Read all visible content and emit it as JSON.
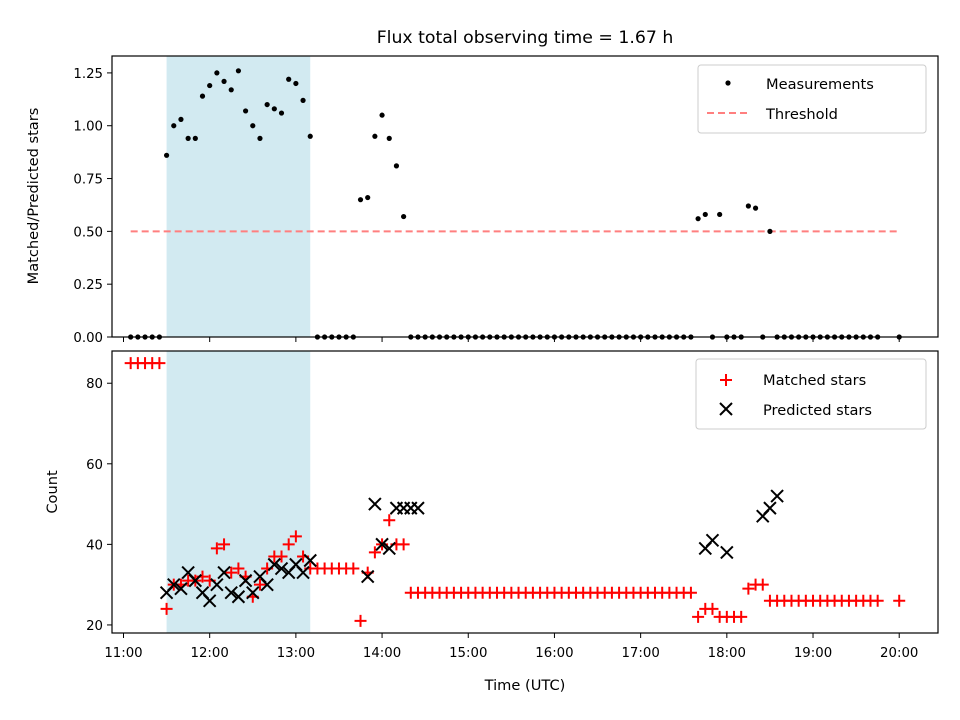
{
  "chart_data": [
    {
      "type": "scatter",
      "title": "Flux total observing time = 1.67 h",
      "xlabel": "",
      "ylabel": "Matched/Predicted stars",
      "xlim": [
        "10:52",
        "20:27"
      ],
      "ylim": [
        0,
        1.33
      ],
      "yticks": [
        0.0,
        0.25,
        0.5,
        0.75,
        1.0,
        1.25
      ],
      "ytick_labels": [
        "0.00",
        "0.25",
        "0.50",
        "0.75",
        "1.00",
        "1.25"
      ],
      "shaded_span": [
        "11:30",
        "13:10"
      ],
      "shaded_color": "#add8e6",
      "legend_position": "top-right",
      "legend": [
        "Measurements",
        "Threshold"
      ],
      "threshold": {
        "name": "Threshold",
        "x": [
          "11:05",
          "20:00"
        ],
        "y": 0.5,
        "color": "#ff7f7f",
        "style": "dashed"
      },
      "series": [
        {
          "name": "Measurements",
          "marker": "dot",
          "color": "#000000",
          "x": [
            "11:05",
            "11:10",
            "11:15",
            "11:20",
            "11:25",
            "11:30",
            "11:35",
            "11:40",
            "11:45",
            "11:50",
            "11:55",
            "12:00",
            "12:05",
            "12:10",
            "12:15",
            "12:20",
            "12:25",
            "12:30",
            "12:35",
            "12:40",
            "12:45",
            "12:50",
            "12:55",
            "13:00",
            "13:05",
            "13:10",
            "13:15",
            "13:20",
            "13:25",
            "13:30",
            "13:35",
            "13:40",
            "13:45",
            "13:50",
            "13:55",
            "14:00",
            "14:05",
            "14:10",
            "14:15",
            "14:20",
            "14:25",
            "14:30",
            "14:35",
            "14:40",
            "14:45",
            "14:50",
            "14:55",
            "15:00",
            "15:05",
            "15:10",
            "15:15",
            "15:20",
            "15:25",
            "15:30",
            "15:35",
            "15:40",
            "15:45",
            "15:50",
            "15:55",
            "16:00",
            "16:05",
            "16:10",
            "16:15",
            "16:20",
            "16:25",
            "16:30",
            "16:35",
            "16:40",
            "16:45",
            "16:50",
            "16:55",
            "17:00",
            "17:05",
            "17:10",
            "17:15",
            "17:20",
            "17:25",
            "17:30",
            "17:35",
            "17:40",
            "17:45",
            "17:50",
            "17:55",
            "18:00",
            "18:05",
            "18:10",
            "18:15",
            "18:20",
            "18:25",
            "18:30",
            "18:35",
            "18:40",
            "18:45",
            "18:50",
            "18:55",
            "19:00",
            "19:05",
            "19:10",
            "19:15",
            "19:20",
            "19:25",
            "19:30",
            "19:35",
            "19:40",
            "19:45",
            "20:00"
          ],
          "y": [
            0,
            0,
            0,
            0,
            0,
            0.86,
            1.0,
            1.03,
            0.94,
            0.94,
            1.14,
            1.19,
            1.25,
            1.21,
            1.17,
            1.26,
            1.07,
            1.0,
            0.94,
            1.1,
            1.08,
            1.06,
            1.22,
            1.2,
            1.12,
            0.95,
            0,
            0,
            0,
            0,
            0,
            0,
            0.65,
            0.66,
            0.95,
            1.05,
            0.94,
            0.81,
            0.57,
            0,
            0,
            0,
            0,
            0,
            0,
            0,
            0,
            0,
            0,
            0,
            0,
            0,
            0,
            0,
            0,
            0,
            0,
            0,
            0,
            0,
            0,
            0,
            0,
            0,
            0,
            0,
            0,
            0,
            0,
            0,
            0,
            0,
            0,
            0,
            0,
            0,
            0,
            0,
            0,
            0.56,
            0.58,
            0,
            0.58,
            0,
            0,
            0,
            0.62,
            0.61,
            0,
            0.5,
            0,
            0,
            0,
            0,
            0,
            0,
            0,
            0,
            0,
            0,
            0,
            0,
            0,
            0,
            0,
            0
          ]
        }
      ]
    },
    {
      "type": "scatter",
      "title": "",
      "xlabel": "Time (UTC)",
      "ylabel": "Count",
      "xlim": [
        "10:52",
        "20:27"
      ],
      "ylim": [
        18,
        88
      ],
      "yticks": [
        20,
        40,
        60,
        80
      ],
      "ytick_labels": [
        "20",
        "40",
        "60",
        "80"
      ],
      "xticks": [
        "11:00",
        "12:00",
        "13:00",
        "14:00",
        "15:00",
        "16:00",
        "17:00",
        "18:00",
        "19:00",
        "20:00"
      ],
      "xtick_labels": [
        "11:00",
        "12:00",
        "13:00",
        "14:00",
        "15:00",
        "16:00",
        "17:00",
        "18:00",
        "19:00",
        "20:00"
      ],
      "shaded_span": [
        "11:30",
        "13:10"
      ],
      "shaded_color": "#add8e6",
      "legend_position": "top-right",
      "legend": [
        "Matched stars",
        "Predicted stars"
      ],
      "series": [
        {
          "name": "Matched stars",
          "marker": "plus",
          "color": "#ff0000",
          "x": [
            "11:05",
            "11:10",
            "11:15",
            "11:20",
            "11:25",
            "11:30",
            "11:35",
            "11:40",
            "11:45",
            "11:50",
            "11:55",
            "12:00",
            "12:05",
            "12:10",
            "12:15",
            "12:20",
            "12:25",
            "12:30",
            "12:35",
            "12:40",
            "12:45",
            "12:50",
            "12:55",
            "13:00",
            "13:05",
            "13:10",
            "13:15",
            "13:20",
            "13:25",
            "13:30",
            "13:35",
            "13:40",
            "13:45",
            "13:50",
            "13:55",
            "14:00",
            "14:05",
            "14:10",
            "14:15",
            "14:20",
            "14:25",
            "14:30",
            "14:35",
            "14:40",
            "14:45",
            "14:50",
            "14:55",
            "15:00",
            "15:05",
            "15:10",
            "15:15",
            "15:20",
            "15:25",
            "15:30",
            "15:35",
            "15:40",
            "15:45",
            "15:50",
            "15:55",
            "16:00",
            "16:05",
            "16:10",
            "16:15",
            "16:20",
            "16:25",
            "16:30",
            "16:35",
            "16:40",
            "16:45",
            "16:50",
            "16:55",
            "17:00",
            "17:05",
            "17:10",
            "17:15",
            "17:20",
            "17:25",
            "17:30",
            "17:35",
            "17:40",
            "17:45",
            "17:50",
            "17:55",
            "18:00",
            "18:05",
            "18:10",
            "18:15",
            "18:20",
            "18:25",
            "18:30",
            "18:35",
            "18:40",
            "18:45",
            "18:50",
            "18:55",
            "19:00",
            "19:05",
            "19:10",
            "19:15",
            "19:20",
            "19:25",
            "19:30",
            "19:35",
            "19:40",
            "19:45",
            "20:00"
          ],
          "y": [
            85,
            85,
            85,
            85,
            85,
            24,
            30,
            30,
            31,
            31,
            32,
            31,
            39,
            40,
            33,
            34,
            32,
            27,
            30,
            34,
            37,
            37,
            40,
            42,
            37,
            34,
            34,
            34,
            34,
            34,
            34,
            34,
            21,
            33,
            38,
            40,
            46,
            40,
            40,
            28,
            28,
            28,
            28,
            28,
            28,
            28,
            28,
            28,
            28,
            28,
            28,
            28,
            28,
            28,
            28,
            28,
            28,
            28,
            28,
            28,
            28,
            28,
            28,
            28,
            28,
            28,
            28,
            28,
            28,
            28,
            28,
            28,
            28,
            28,
            28,
            28,
            28,
            28,
            28,
            22,
            24,
            24,
            22,
            22,
            22,
            22,
            29,
            30,
            30,
            26,
            26,
            26,
            26,
            26,
            26,
            26,
            26,
            26,
            26,
            26,
            26,
            26,
            26,
            26,
            26,
            26
          ]
        },
        {
          "name": "Predicted stars",
          "marker": "x",
          "color": "#000000",
          "x": [
            "11:30",
            "11:35",
            "11:40",
            "11:45",
            "11:50",
            "11:55",
            "12:00",
            "12:05",
            "12:10",
            "12:15",
            "12:20",
            "12:25",
            "12:30",
            "12:35",
            "12:40",
            "12:45",
            "12:50",
            "12:55",
            "13:00",
            "13:05",
            "13:10",
            "13:50",
            "13:55",
            "14:00",
            "14:05",
            "14:10",
            "14:15",
            "14:20",
            "14:25",
            "17:45",
            "17:50",
            "18:00",
            "18:25",
            "18:30",
            "18:35"
          ],
          "y": [
            28,
            30,
            29,
            33,
            31,
            28,
            26,
            30,
            33,
            28,
            27,
            31,
            28,
            32,
            30,
            35,
            34,
            33,
            35,
            33,
            36,
            32,
            50,
            40,
            39,
            49,
            49,
            49,
            49,
            39,
            41,
            38,
            47,
            49,
            52
          ]
        }
      ]
    }
  ]
}
